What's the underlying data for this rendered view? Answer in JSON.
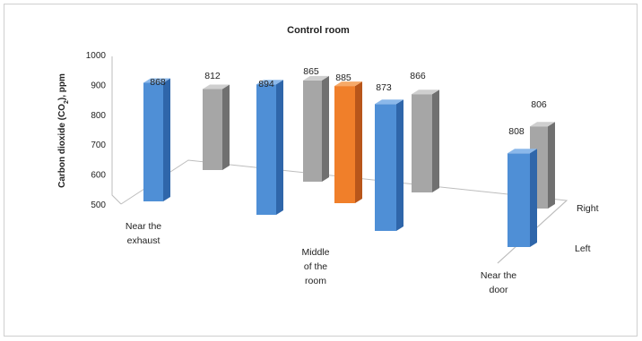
{
  "chart_data": {
    "type": "bar",
    "title": "Control room",
    "ylabel_main": "Carbon dioxide (CO",
    "ylabel_sub": "2",
    "ylabel_tail": "), ppm",
    "ylim": [
      500,
      1000
    ],
    "yticks": [
      "500",
      "600",
      "700",
      "800",
      "900",
      "1000"
    ],
    "categories": [
      {
        "lines": [
          "Near the",
          "exhaust"
        ]
      },
      {
        "lines": [
          "Middle",
          "of the",
          "room"
        ]
      },
      {
        "lines": [
          "Near the",
          "door"
        ]
      }
    ],
    "depth_labels": [
      "Left",
      "Right"
    ],
    "grid": false,
    "legend": "none",
    "bars": [
      {
        "row": "Left",
        "value": 868,
        "label": "868",
        "color": "#4f8fd6"
      },
      {
        "row": "Right",
        "value": 812,
        "label": "812",
        "color": "#a6a6a6"
      },
      {
        "row": "Left",
        "value": 894,
        "label": "894",
        "color": "#4f8fd6"
      },
      {
        "row": "Right",
        "value": 865,
        "label": "865",
        "color": "#a6a6a6"
      },
      {
        "row": "Left",
        "value": 885,
        "label": "885",
        "color": "#f07f2a"
      },
      {
        "row": "Left",
        "value": 873,
        "label": "873",
        "color": "#4f8fd6"
      },
      {
        "row": "Right",
        "value": 866,
        "label": "866",
        "color": "#a6a6a6"
      },
      {
        "row": "Right",
        "value": 806,
        "label": "806",
        "color": "#a6a6a6"
      },
      {
        "row": "Left",
        "value": 808,
        "label": "808",
        "color": "#4f8fd6"
      }
    ]
  }
}
